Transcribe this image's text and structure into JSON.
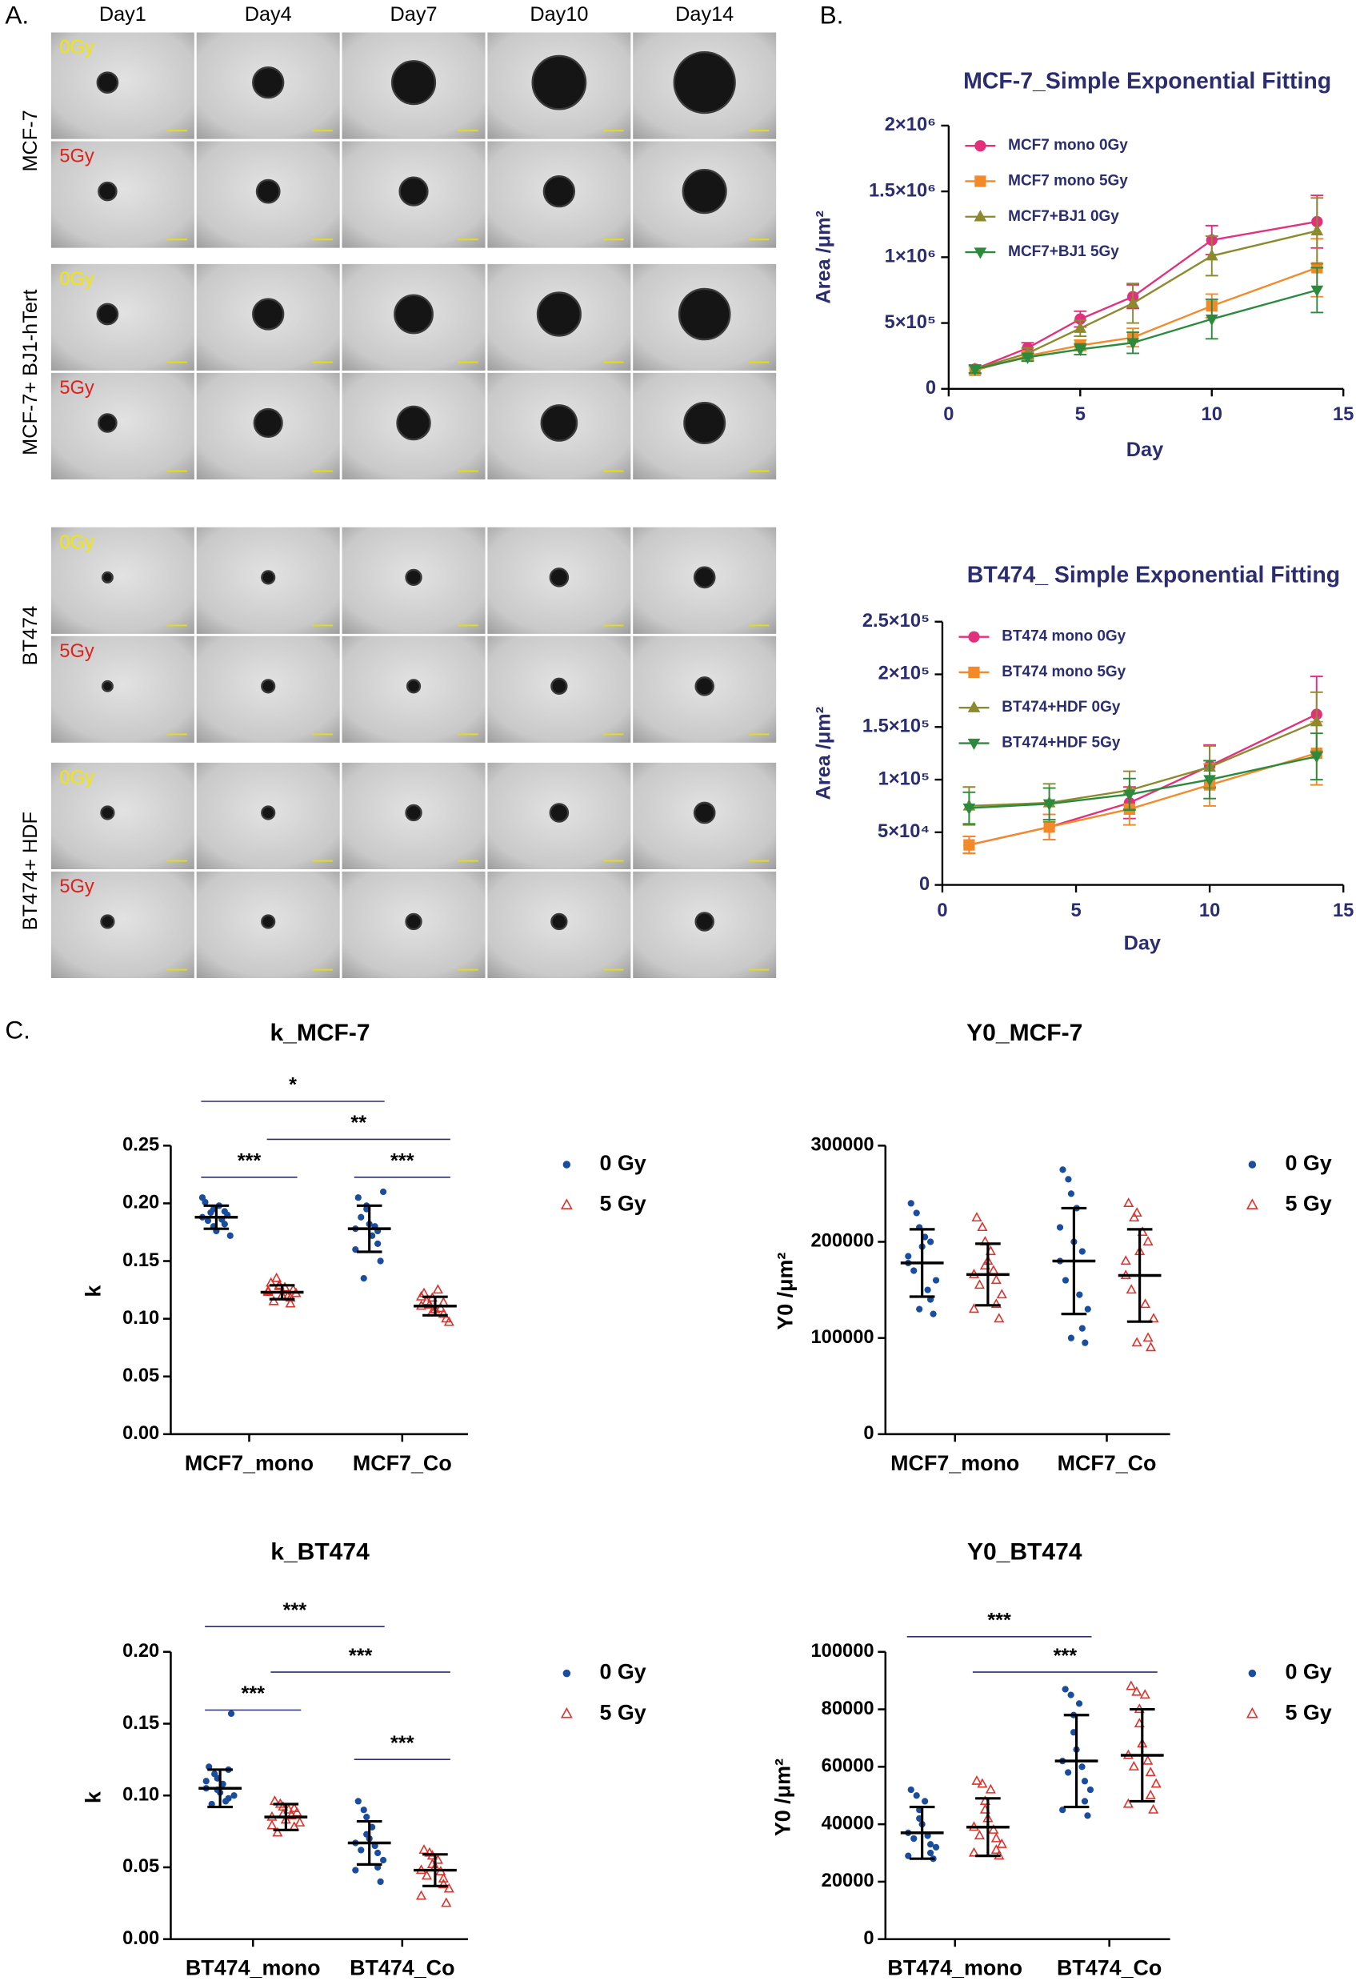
{
  "panel_labels": [
    "A.",
    "B.",
    "C."
  ],
  "image_grid": {
    "columns": [
      "Day1",
      "Day4",
      "Day7",
      "Day10",
      "Day14"
    ],
    "groups": [
      {
        "label": "MCF-7",
        "rows": [
          "0Gy",
          "5Gy"
        ]
      },
      {
        "label": "MCF-7+ BJ1-hTert",
        "rows": [
          "0Gy",
          "5Gy"
        ]
      },
      {
        "label": "BT474",
        "rows": [
          "0Gy",
          "5Gy"
        ]
      },
      {
        "label": "BT474+ HDF",
        "rows": [
          "0Gy",
          "5Gy"
        ]
      }
    ]
  },
  "chart_data": [
    {
      "type": "line",
      "title": "MCF-7_Simple Exponential Fitting",
      "xlabel": "Day",
      "ylabel": "Area /μm²",
      "x": [
        1,
        3,
        5,
        7,
        10,
        14
      ],
      "xlim": [
        0,
        15
      ],
      "xticks": [
        0,
        5,
        10,
        15
      ],
      "ylim": [
        0,
        2000000
      ],
      "yticks": [
        0,
        {
          "value": 500000,
          "label": "5×10⁵"
        },
        {
          "value": 1000000,
          "label": "1×10⁶"
        },
        {
          "value": 1500000,
          "label": "1.5×10⁶"
        },
        {
          "value": 2000000,
          "label": "2×10⁶"
        }
      ],
      "series": [
        {
          "name": "MCF7 mono 0Gy",
          "color": "#e2307c",
          "marker": "circle",
          "values": [
            150000,
            310000,
            530000,
            700000,
            1130000,
            1270000
          ],
          "errors": [
            30000,
            40000,
            60000,
            90000,
            110000,
            200000
          ]
        },
        {
          "name": "MCF7 mono 5Gy",
          "color": "#f28a2a",
          "marker": "square",
          "values": [
            140000,
            250000,
            330000,
            390000,
            630000,
            920000
          ],
          "errors": [
            30000,
            30000,
            40000,
            70000,
            90000,
            220000
          ]
        },
        {
          "name": "MCF7+BJ1 0Gy",
          "color": "#8b8a2c",
          "marker": "triangle-up",
          "values": [
            150000,
            270000,
            460000,
            650000,
            1010000,
            1200000
          ],
          "errors": [
            30000,
            40000,
            60000,
            150000,
            150000,
            250000
          ]
        },
        {
          "name": "MCF7+BJ1 5Gy",
          "color": "#2b8a3e",
          "marker": "triangle-down",
          "values": [
            150000,
            240000,
            300000,
            350000,
            530000,
            750000
          ],
          "errors": [
            30000,
            30000,
            40000,
            80000,
            150000,
            170000
          ]
        }
      ]
    },
    {
      "type": "line",
      "title": "BT474_ Simple Exponential Fitting",
      "xlabel": "Day",
      "ylabel": "Area /μm²",
      "x": [
        1,
        4,
        7,
        10,
        14
      ],
      "xlim": [
        0,
        15
      ],
      "xticks": [
        0,
        5,
        10,
        15
      ],
      "ylim": [
        0,
        250000
      ],
      "yticks": [
        0,
        {
          "value": 50000,
          "label": "5×10⁴"
        },
        {
          "value": 100000,
          "label": "1×10⁵"
        },
        {
          "value": 150000,
          "label": "1.5×10⁵"
        },
        {
          "value": 200000,
          "label": "2×10⁵"
        },
        {
          "value": 250000,
          "label": "2.5×10⁵"
        }
      ],
      "series": [
        {
          "name": "BT474 mono 0Gy",
          "color": "#e2307c",
          "marker": "circle",
          "values": [
            38000,
            55000,
            78000,
            113000,
            162000
          ],
          "errors": [
            8000,
            12000,
            15000,
            20000,
            36000
          ]
        },
        {
          "name": "BT474 mono 5Gy",
          "color": "#f28a2a",
          "marker": "square",
          "values": [
            38000,
            55000,
            72000,
            95000,
            125000
          ],
          "errors": [
            8000,
            12000,
            15000,
            20000,
            30000
          ]
        },
        {
          "name": "BT474+HDF 0Gy",
          "color": "#8b8a2c",
          "marker": "triangle-up",
          "values": [
            75000,
            78000,
            90000,
            112000,
            155000
          ],
          "errors": [
            18000,
            18000,
            18000,
            20000,
            28000
          ]
        },
        {
          "name": "BT474+HDF 5Gy",
          "color": "#2b8a3e",
          "marker": "triangle-down",
          "values": [
            73000,
            77000,
            86000,
            100000,
            122000
          ],
          "errors": [
            15000,
            15000,
            15000,
            18000,
            22000
          ]
        }
      ]
    },
    {
      "type": "dot",
      "title": "k_MCF-7",
      "ylabel": "k",
      "categories": [
        "MCF7_mono",
        "MCF7_Co"
      ],
      "ylim": [
        0,
        0.25
      ],
      "yticks": [
        {
          "value": 0,
          "label": "0.00"
        },
        {
          "value": 0.05,
          "label": "0.05"
        },
        {
          "value": 0.1,
          "label": "0.10"
        },
        {
          "value": 0.15,
          "label": "0.15"
        },
        {
          "value": 0.2,
          "label": "0.20"
        },
        {
          "value": 0.25,
          "label": "0.25"
        }
      ],
      "series": [
        {
          "name": "0 Gy",
          "color": "#1a4d9e",
          "marker": "circle",
          "values": [
            [
              0.188,
              0.195,
              0.182,
              0.201,
              0.176,
              0.19,
              0.185,
              0.198,
              0.172,
              0.192,
              0.186,
              0.205,
              0.18,
              0.193
            ],
            [
              0.178,
              0.195,
              0.165,
              0.205,
              0.182,
              0.15,
              0.188,
              0.172,
              0.21,
              0.135,
              0.18,
              0.16,
              0.198,
              0.176
            ]
          ],
          "means": [
            0.188,
            0.178
          ],
          "sds": [
            0.01,
            0.02
          ]
        },
        {
          "name": "5 Gy",
          "color": "#e0302a",
          "marker": "triangle-open",
          "values": [
            [
              0.123,
              0.128,
              0.118,
              0.131,
              0.12,
              0.125,
              0.115,
              0.127,
              0.122,
              0.135,
              0.119,
              0.124,
              0.129,
              0.113
            ],
            [
              0.111,
              0.118,
              0.104,
              0.122,
              0.108,
              0.1,
              0.115,
              0.125,
              0.097,
              0.112,
              0.109,
              0.119,
              0.106,
              0.114
            ]
          ],
          "means": [
            0.123,
            0.111
          ],
          "sds": [
            0.006,
            0.008
          ]
        }
      ],
      "comparisons": [
        {
          "text": "*",
          "between": [
            [
              0,
              0
            ],
            [
              1,
              0
            ]
          ]
        },
        {
          "text": "**",
          "between": [
            [
              0,
              1
            ],
            [
              1,
              1
            ]
          ]
        },
        {
          "text": "***",
          "between": [
            [
              0,
              0
            ],
            [
              0,
              1
            ]
          ]
        },
        {
          "text": "***",
          "between": [
            [
              1,
              0
            ],
            [
              1,
              1
            ]
          ]
        }
      ]
    },
    {
      "type": "dot",
      "title": "Y0_MCF-7",
      "ylabel": "Y0 /μm²",
      "categories": [
        "MCF7_mono",
        "MCF7_Co"
      ],
      "ylim": [
        0,
        300000
      ],
      "yticks": [
        0,
        100000,
        200000,
        300000
      ],
      "series": [
        {
          "name": "0 Gy",
          "color": "#1a4d9e",
          "marker": "circle",
          "values": [
            [
              178000,
              215000,
              140000,
              240000,
              195000,
              125000,
              170000,
              205000,
              160000,
              230000,
              150000,
              185000,
              130000,
              200000
            ],
            [
              180000,
              250000,
              110000,
              275000,
              200000,
              95000,
              160000,
              235000,
              130000,
              265000,
              145000,
              215000,
              100000,
              190000
            ]
          ],
          "means": [
            178000,
            180000
          ],
          "sds": [
            35000,
            55000
          ]
        },
        {
          "name": "5 Gy",
          "color": "#e0302a",
          "marker": "triangle-open",
          "values": [
            [
              166000,
              200000,
              135000,
              225000,
              180000,
              120000,
              155000,
              190000,
              145000,
              215000,
              170000,
              130000,
              175000,
              160000
            ],
            [
              165000,
              230000,
              100000,
              240000,
              190000,
              90000,
              150000,
              210000,
              120000,
              225000,
              135000,
              180000,
              95000,
              200000
            ]
          ],
          "means": [
            166000,
            165000
          ],
          "sds": [
            32000,
            48000
          ]
        }
      ],
      "comparisons": []
    },
    {
      "type": "dot",
      "title": "k_BT474",
      "ylabel": "k",
      "categories": [
        "BT474_mono",
        "BT474_Co"
      ],
      "ylim": [
        0,
        0.2
      ],
      "yticks": [
        {
          "value": 0,
          "label": "0.00"
        },
        {
          "value": 0.05,
          "label": "0.05"
        },
        {
          "value": 0.1,
          "label": "0.10"
        },
        {
          "value": 0.15,
          "label": "0.15"
        },
        {
          "value": 0.2,
          "label": "0.20"
        }
      ],
      "series": [
        {
          "name": "0 Gy",
          "color": "#1a4d9e",
          "marker": "circle",
          "values": [
            [
              0.105,
              0.112,
              0.098,
              0.12,
              0.102,
              0.157,
              0.094,
              0.108,
              0.1,
              0.115,
              0.096,
              0.11,
              0.104,
              0.118
            ],
            [
              0.067,
              0.085,
              0.05,
              0.096,
              0.07,
              0.04,
              0.062,
              0.078,
              0.055,
              0.09,
              0.065,
              0.048,
              0.073,
              0.06
            ]
          ],
          "means": [
            0.105,
            0.067
          ],
          "sds": [
            0.013,
            0.015
          ]
        },
        {
          "name": "5 Gy",
          "color": "#e0302a",
          "marker": "triangle-open",
          "values": [
            [
              0.085,
              0.092,
              0.078,
              0.096,
              0.083,
              0.088,
              0.074,
              0.09,
              0.081,
              0.094,
              0.086,
              0.079,
              0.087,
              0.091
            ],
            [
              0.048,
              0.058,
              0.038,
              0.062,
              0.05,
              0.025,
              0.044,
              0.055,
              0.035,
              0.06,
              0.047,
              0.03,
              0.052,
              0.042
            ]
          ],
          "means": [
            0.085,
            0.048
          ],
          "sds": [
            0.009,
            0.011
          ]
        }
      ],
      "comparisons": [
        {
          "text": "***",
          "between": [
            [
              0,
              0
            ],
            [
              1,
              0
            ]
          ]
        },
        {
          "text": "***",
          "between": [
            [
              0,
              1
            ],
            [
              1,
              1
            ]
          ]
        },
        {
          "text": "***",
          "between": [
            [
              0,
              0
            ],
            [
              0,
              1
            ]
          ]
        },
        {
          "text": "***",
          "between": [
            [
              1,
              0
            ],
            [
              1,
              1
            ]
          ]
        }
      ]
    },
    {
      "type": "dot",
      "title": "Y0_BT474",
      "ylabel": "Y0 /μm²",
      "categories": [
        "BT474_mono",
        "BT474_Co"
      ],
      "ylim": [
        0,
        100000
      ],
      "yticks": [
        0,
        20000,
        40000,
        60000,
        80000,
        100000
      ],
      "series": [
        {
          "name": "0 Gy",
          "color": "#1a4d9e",
          "marker": "circle",
          "values": [
            [
              37000,
              45000,
              30000,
              52000,
              40000,
              28000,
              35000,
              48000,
              32000,
              50000,
              36000,
              29000,
              42000,
              33000
            ],
            [
              62000,
              78000,
              48000,
              87000,
              66000,
              43000,
              58000,
              82000,
              52000,
              85000,
              60000,
              45000,
              72000,
              55000
            ]
          ],
          "means": [
            37000,
            62000
          ],
          "sds": [
            9000,
            16000
          ]
        },
        {
          "name": "5 Gy",
          "color": "#e0302a",
          "marker": "triangle-open",
          "values": [
            [
              39000,
              48000,
              31000,
              55000,
              42000,
              29000,
              36000,
              52000,
              33000,
              54000,
              38000,
              30000,
              45000,
              35000
            ],
            [
              64000,
              80000,
              50000,
              88000,
              68000,
              45000,
              60000,
              85000,
              54000,
              86000,
              62000,
              47000,
              75000,
              58000
            ]
          ],
          "means": [
            39000,
            64000
          ],
          "sds": [
            10000,
            16000
          ]
        }
      ],
      "comparisons": [
        {
          "text": "***",
          "between": [
            [
              0,
              0
            ],
            [
              1,
              0
            ]
          ]
        },
        {
          "text": "***",
          "between": [
            [
              0,
              1
            ],
            [
              1,
              1
            ]
          ]
        }
      ]
    }
  ]
}
